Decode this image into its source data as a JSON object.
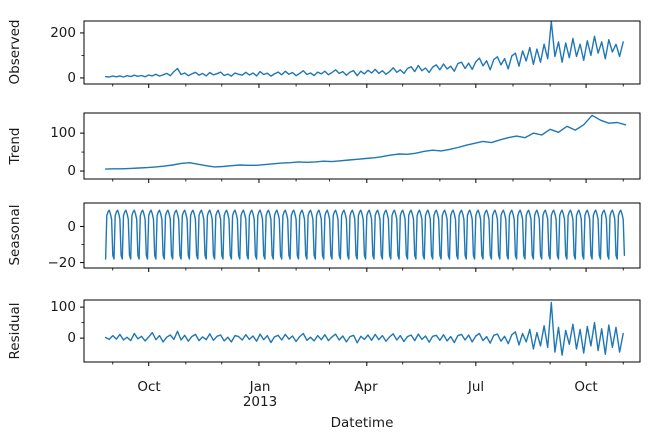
{
  "figure": {
    "xlabel": "Datetime",
    "background_color": "#ffffff",
    "line_color": "#1f77b4",
    "spine_color": "#000000",
    "text_color": "#1a1a1a",
    "x_axis": {
      "xlim": [
        -18,
        446
      ],
      "year_label": "2013",
      "major_ticks": [
        {
          "label": "Oct",
          "day": 36
        },
        {
          "label": "Jan",
          "day": 128
        },
        {
          "label": "Apr",
          "day": 218
        },
        {
          "label": "Jul",
          "day": 309
        },
        {
          "label": "Oct",
          "day": 401
        }
      ],
      "minor_tick_days": [
        6,
        67,
        97,
        159,
        187,
        248,
        279,
        340,
        371,
        432
      ]
    }
  },
  "chart_data": [
    {
      "type": "line",
      "name": "observed",
      "ylabel": "Observed",
      "ylim": [
        -27,
        253
      ],
      "yticks": [
        {
          "label": "200",
          "value": 200
        },
        {
          "label": "0",
          "value": 0
        }
      ],
      "minor_ytick_values": [
        100
      ],
      "x0": 0,
      "x_step": 3,
      "values": [
        6,
        4,
        8,
        5,
        9,
        4,
        10,
        6,
        12,
        7,
        11,
        5,
        13,
        9,
        16,
        8,
        14,
        20,
        10,
        28,
        42,
        15,
        22,
        10,
        18,
        25,
        12,
        20,
        9,
        24,
        14,
        19,
        26,
        11,
        17,
        8,
        22,
        16,
        12,
        25,
        13,
        22,
        9,
        28,
        15,
        21,
        8,
        18,
        26,
        14,
        30,
        16,
        24,
        10,
        20,
        32,
        15,
        22,
        11,
        26,
        18,
        30,
        14,
        24,
        36,
        20,
        28,
        12,
        26,
        32,
        10,
        30,
        18,
        34,
        22,
        38,
        20,
        32,
        16,
        28,
        45,
        25,
        36,
        20,
        42,
        50,
        28,
        55,
        32,
        44,
        24,
        48,
        58,
        36,
        62,
        40,
        52,
        30,
        64,
        70,
        42,
        66,
        38,
        72,
        88,
        54,
        76,
        36,
        82,
        94,
        58,
        86,
        40,
        98,
        110,
        52,
        120,
        75,
        135,
        60,
        128,
        70,
        150,
        85,
        250,
        95,
        160,
        70,
        155,
        90,
        175,
        95,
        150,
        78,
        165,
        100,
        185,
        110,
        160,
        85,
        170,
        115,
        150,
        95,
        160
      ]
    },
    {
      "type": "line",
      "name": "trend",
      "ylabel": "Trend",
      "ylim": [
        -21,
        153
      ],
      "yticks": [
        {
          "label": "100",
          "value": 100
        },
        {
          "label": "0",
          "value": 0
        }
      ],
      "minor_ytick_values": [
        50
      ],
      "x0": 0,
      "x_step": 7,
      "values": [
        5,
        6,
        6,
        7,
        8,
        9,
        11,
        13,
        16,
        20,
        22,
        18,
        14,
        11,
        12,
        14,
        16,
        15,
        15,
        17,
        19,
        21,
        22,
        24,
        23,
        24,
        26,
        25,
        27,
        29,
        31,
        33,
        35,
        38,
        42,
        45,
        44,
        47,
        52,
        55,
        53,
        57,
        62,
        68,
        73,
        78,
        75,
        82,
        88,
        92,
        88,
        100,
        95,
        110,
        102,
        118,
        108,
        122,
        147,
        134,
        126,
        128,
        122
      ]
    },
    {
      "type": "line",
      "name": "seasonal",
      "ylabel": "Seasonal",
      "ylim": [
        -23,
        13
      ],
      "yticks": [
        {
          "label": "0",
          "value": 0
        },
        {
          "label": "−20",
          "value": -20
        }
      ],
      "minor_ytick_values": [
        -10
      ],
      "x0": 0,
      "n_days": 434,
      "weekly_pattern": [
        -18,
        6,
        8,
        9,
        7,
        4,
        -16
      ]
    },
    {
      "type": "line",
      "name": "residual",
      "ylabel": "Residual",
      "ylim": [
        -77,
        123
      ],
      "yticks": [
        {
          "label": "100",
          "value": 100
        },
        {
          "label": "0",
          "value": 0
        }
      ],
      "minor_ytick_values": [
        50
      ],
      "x0": 0,
      "x_step": 3,
      "values": [
        2,
        -4,
        8,
        -3,
        12,
        -6,
        3,
        -8,
        15,
        -2,
        6,
        -9,
        4,
        18,
        -5,
        8,
        -12,
        3,
        10,
        -4,
        22,
        -6,
        9,
        -10,
        5,
        12,
        -8,
        4,
        -5,
        14,
        -7,
        6,
        10,
        -9,
        3,
        -12,
        8,
        5,
        -6,
        11,
        -4,
        7,
        -10,
        13,
        -5,
        8,
        -14,
        4,
        9,
        -6,
        12,
        -3,
        7,
        -11,
        5,
        15,
        -7,
        3,
        -9,
        8,
        -5,
        11,
        -8,
        4,
        13,
        -6,
        7,
        -12,
        5,
        9,
        -15,
        6,
        -4,
        10,
        -7,
        12,
        -5,
        8,
        -10,
        4,
        14,
        -6,
        8,
        -11,
        5,
        10,
        -8,
        13,
        -4,
        7,
        -13,
        6,
        9,
        -7,
        11,
        -9,
        5,
        -14,
        8,
        12,
        -6,
        10,
        -12,
        7,
        15,
        -8,
        5,
        -16,
        9,
        13,
        -10,
        6,
        -18,
        11,
        20,
        -22,
        15,
        -12,
        28,
        -35,
        18,
        -25,
        40,
        -30,
        115,
        -45,
        35,
        -55,
        25,
        -20,
        45,
        -35,
        28,
        -48,
        38,
        -25,
        50,
        -40,
        30,
        -52,
        42,
        -30,
        35,
        -45,
        15
      ]
    }
  ]
}
